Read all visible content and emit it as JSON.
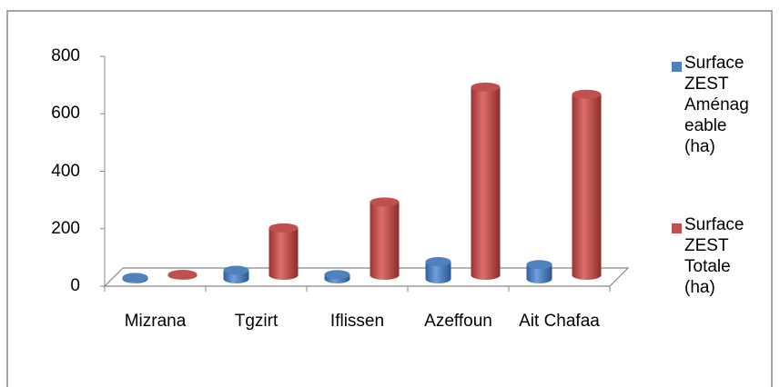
{
  "chart_data": {
    "type": "bar3d",
    "categories": [
      "Mizrana",
      "Tgzirt",
      "Iflissen",
      "Azeffoun",
      "Ait Chafaa"
    ],
    "series": [
      {
        "name": "Surface ZEST Aménageable (ha)",
        "color": "#4f81bd",
        "values": [
          5,
          30,
          15,
          60,
          50
        ]
      },
      {
        "name": "Surface ZEST Totale (ha)",
        "color": "#c0504d",
        "values": [
          3,
          165,
          255,
          655,
          630
        ]
      }
    ],
    "ylim": [
      0,
      800
    ],
    "yticks": [
      0,
      200,
      400,
      600,
      800
    ],
    "legend": "right"
  }
}
